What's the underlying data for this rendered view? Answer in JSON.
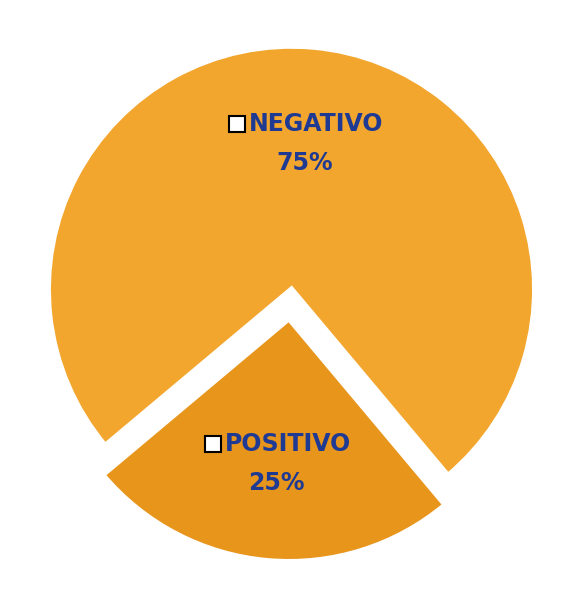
{
  "chart_data": {
    "type": "pie",
    "categories": [
      "NEGATIVO",
      "POSITIVO"
    ],
    "values": [
      75,
      25
    ],
    "value_labels": [
      "75%",
      "25%"
    ],
    "colors": [
      "#f2a62e",
      "#e8951c"
    ],
    "data_labels": true
  }
}
